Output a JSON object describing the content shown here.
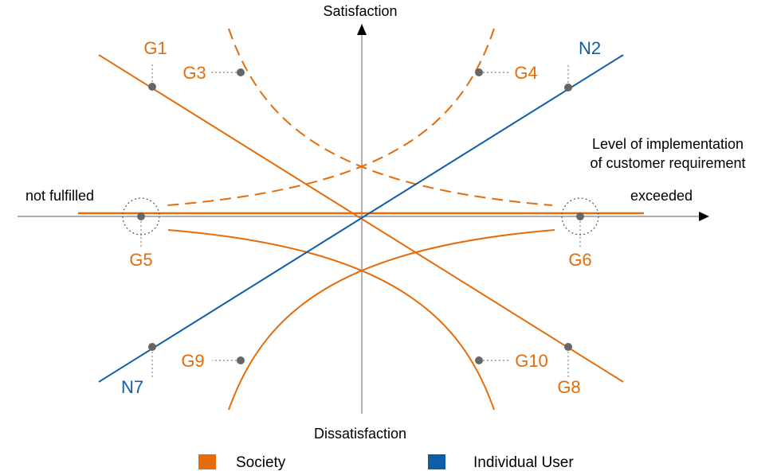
{
  "colors": {
    "society": "#E46C0A",
    "individual": "#0F5CA8",
    "axis": "#7f7f7f",
    "marker": "#666666"
  },
  "axis_labels": {
    "y_top": "Satisfaction",
    "y_bottom": "Dissatisfaction",
    "x_left": "not fulfilled",
    "x_right": "exceeded",
    "x_title_line1": "Level of implementation",
    "x_title_line2": "of customer requirement"
  },
  "point_labels": {
    "g1": "G1",
    "g3": "G3",
    "g4": "G4",
    "n2": "N2",
    "g5": "G5",
    "g6": "G6",
    "g9": "G9",
    "g10": "G10",
    "n7": "N7",
    "g8": "G8"
  },
  "legend": [
    {
      "label": "Society",
      "color": "#E46C0A"
    },
    {
      "label": "Individual User",
      "color": "#0F5CA8"
    }
  ]
}
